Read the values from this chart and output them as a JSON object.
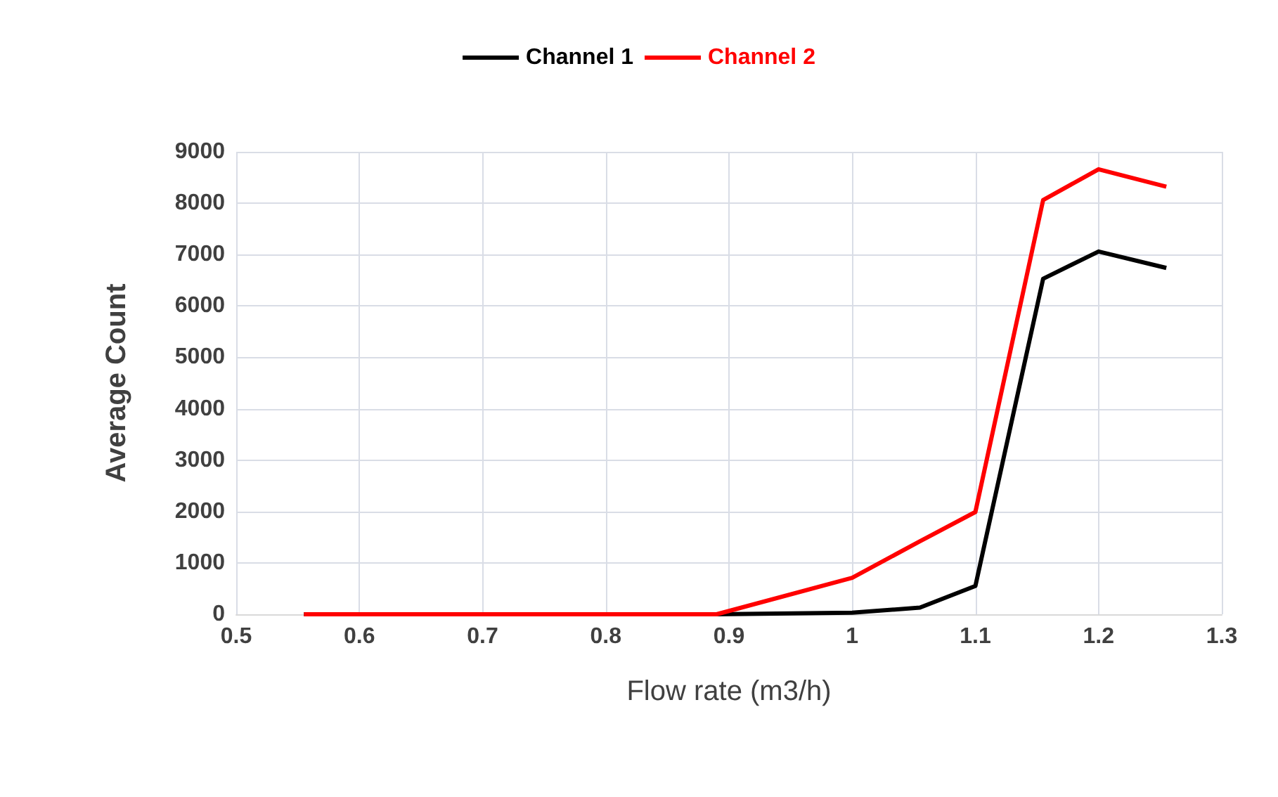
{
  "chart_data": {
    "type": "line",
    "xlabel": "Flow rate (m3/h)",
    "ylabel": "Average Count",
    "x": [
      0.555,
      0.89,
      1.0,
      1.055,
      1.1,
      1.155,
      1.2,
      1.255
    ],
    "series": [
      {
        "name": "Channel 1",
        "color": "#000000",
        "values": [
          0,
          0,
          30,
          130,
          550,
          6530,
          7060,
          6740
        ]
      },
      {
        "name": "Channel 2",
        "color": "#ff0000",
        "values": [
          0,
          0,
          710,
          1420,
          1990,
          8060,
          8660,
          8320
        ]
      }
    ],
    "xlim": [
      0.5,
      1.3
    ],
    "xticks": [
      0.5,
      0.6,
      0.7,
      0.8,
      0.9,
      1,
      1.1,
      1.2,
      1.3
    ],
    "ylim": [
      0,
      9000
    ],
    "yticks": [
      0,
      1000,
      2000,
      3000,
      4000,
      5000,
      6000,
      7000,
      8000,
      9000
    ],
    "grid": true,
    "legend": "top",
    "marker": "none",
    "line_style": "solid"
  }
}
